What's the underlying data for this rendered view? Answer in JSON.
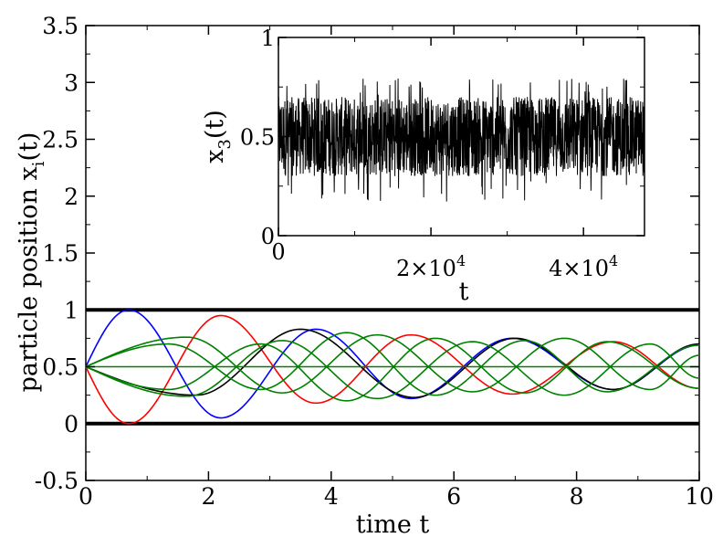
{
  "chart_data": [
    {
      "type": "line",
      "xlabel": "time t",
      "ylabel_main": "particle position x",
      "ylabel_sub": "i",
      "ylabel_tail": "(t)",
      "xlim": [
        0,
        10
      ],
      "ylim": [
        -0.5,
        3.5
      ],
      "xticks": [
        0,
        2,
        4,
        6,
        8,
        10
      ],
      "xtick_labels": [
        "0",
        "2",
        "4",
        "6",
        "8",
        "10"
      ],
      "yticks": [
        -0.5,
        0,
        0.5,
        1,
        1.5,
        2,
        2.5,
        3,
        3.5
      ],
      "ytick_labels": [
        "-0.5",
        "0",
        "0.5",
        "1",
        "1.5",
        "2",
        "2.5",
        "3",
        "3.5"
      ],
      "grid": false,
      "walls": [
        0,
        1
      ],
      "series": [
        {
          "color": "#0000ff",
          "start": 0.5,
          "amp0": 0.5,
          "x": [
            0,
            0.7,
            2.2,
            3.75,
            5.3,
            6.95,
            8.6,
            10
          ],
          "y": [
            0.5,
            1.0,
            0.05,
            0.83,
            0.22,
            0.75,
            0.3,
            0.69
          ]
        },
        {
          "color": "#ff0000",
          "start": 0.5,
          "amp0": -0.5,
          "x": [
            0,
            0.7,
            2.2,
            3.75,
            5.3,
            6.95,
            8.6,
            10
          ],
          "y": [
            0.5,
            0.0,
            0.95,
            0.18,
            0.78,
            0.26,
            0.72,
            0.31
          ]
        },
        {
          "color": "#000000",
          "start": 0.5,
          "amp0": -0.25,
          "x": [
            0,
            1.8,
            3.5,
            5.35,
            7.0,
            8.6,
            10
          ],
          "y": [
            0.5,
            0.25,
            0.83,
            0.23,
            0.75,
            0.3,
            0.7
          ]
        },
        {
          "color": "#008000",
          "start": 0.5,
          "amp0": 0.25,
          "x": [
            0,
            1.65,
            3.2,
            4.75,
            6.3,
            7.8,
            9.2,
            10
          ],
          "y": [
            0.5,
            0.76,
            0.27,
            0.78,
            0.28,
            0.75,
            0.3,
            0.6
          ]
        },
        {
          "color": "#008000",
          "start": 0.5,
          "amp0": -0.25,
          "x": [
            0,
            1.65,
            3.2,
            4.75,
            6.3,
            7.8,
            9.2,
            10
          ],
          "y": [
            0.5,
            0.24,
            0.73,
            0.22,
            0.72,
            0.25,
            0.7,
            0.4
          ]
        },
        {
          "color": "#008000",
          "start": 0.5,
          "amp0": 0.2,
          "x": [
            0,
            1.35,
            2.85,
            4.25,
            5.7,
            7.15,
            8.5,
            10
          ],
          "y": [
            0.5,
            0.3,
            0.7,
            0.2,
            0.75,
            0.27,
            0.72,
            0.31
          ]
        },
        {
          "color": "#008000",
          "start": 0.5,
          "amp0": -0.2,
          "x": [
            0,
            1.35,
            2.85,
            4.25,
            5.7,
            7.15,
            8.5,
            10
          ],
          "y": [
            0.5,
            0.7,
            0.3,
            0.8,
            0.25,
            0.73,
            0.28,
            0.69
          ]
        },
        {
          "color": "#008000",
          "start": 0.5,
          "amp0": 0,
          "x": [
            0,
            10
          ],
          "y": [
            0.5,
            0.5
          ]
        }
      ]
    },
    {
      "type": "line",
      "xlabel": "t",
      "ylabel_main": "x",
      "ylabel_sub": "3",
      "ylabel_tail": "(t)",
      "xlim": [
        0,
        48000
      ],
      "ylim": [
        0,
        1
      ],
      "xticks": [
        0,
        20000,
        40000
      ],
      "xtick_labels": [
        {
          "base": "0",
          "exp": ""
        },
        {
          "base": "2×10",
          "exp": "4"
        },
        {
          "base": "4×10",
          "exp": "4"
        }
      ],
      "yticks": [
        0,
        0.5,
        1
      ],
      "ytick_labels": [
        "0",
        "0.5",
        "1"
      ],
      "series": [
        {
          "color": "#000000",
          "mean": 0.5,
          "band_low": 0.3,
          "band_high": 0.7,
          "min": 0.17,
          "max": 0.8
        }
      ]
    }
  ]
}
